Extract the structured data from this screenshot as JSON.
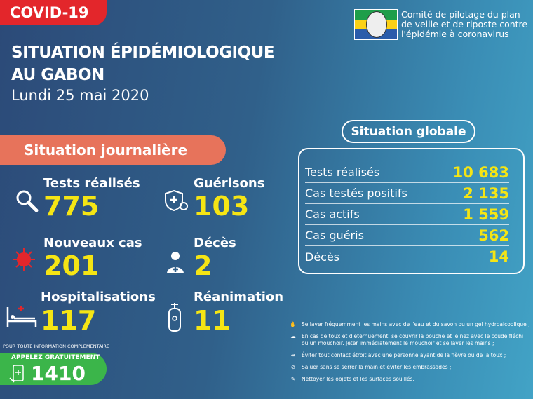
{
  "badge": "COVID-19",
  "title_line1": "SITUATION ÉPIDÉMIOLOGIQUE",
  "title_line2": "AU GABON",
  "date": "Lundi 25 mai 2020",
  "committee": [
    "Comité de pilotage du plan",
    "de veille et de riposte contre",
    "l'épidémie à coronavirus"
  ],
  "colors": {
    "accent_yellow": "#f5e514",
    "red": "#e3262b",
    "salmon": "#e7735b",
    "green": "#3bb54a"
  },
  "daily": {
    "title": "Situation journalière",
    "items": [
      {
        "label": "Tests réalisés",
        "value": "775",
        "icon": "magnifier-icon"
      },
      {
        "label": "Guérisons",
        "value": "103",
        "icon": "shield-virus-icon"
      },
      {
        "label": "Nouveaux cas",
        "value": "201",
        "icon": "virus-icon"
      },
      {
        "label": "Décès",
        "value": "2",
        "icon": "person-icon"
      },
      {
        "label": "Hospitalisations",
        "value": "117",
        "icon": "hospital-bed-icon"
      },
      {
        "label": "Réanimation",
        "value": "11",
        "icon": "oxygen-tank-icon"
      }
    ]
  },
  "global": {
    "title": "Situation globale",
    "rows": [
      {
        "label": "Tests réalisés",
        "value": "10 683"
      },
      {
        "label": "Cas testés positifs",
        "value": "2 135"
      },
      {
        "label": "Cas actifs",
        "value": "1 559"
      },
      {
        "label": "Cas guéris",
        "value": "562"
      },
      {
        "label": "Décès",
        "value": "14"
      }
    ]
  },
  "tips": [
    "Se laver fréquemment les mains avec de l'eau et du savon ou un gel hydroalcoolique ;",
    "En cas de toux et d'éternuement, se couvrir la bouche et le nez avec le coude fléchi ou un mouchoir. Jeter immédiatement le mouchoir et se laver les mains ;",
    "Éviter tout contact étroit avec une personne ayant de la fièvre ou de la toux ;",
    "Saluer sans se serrer la main et éviter les embrassades ;",
    "Nettoyer les objets et les surfaces souillés."
  ],
  "hotline": {
    "info": "POUR TOUTE INFORMATION COMPLEMENTAIRE",
    "call": "APPELEZ GRATUITEMENT",
    "number": "1410"
  }
}
